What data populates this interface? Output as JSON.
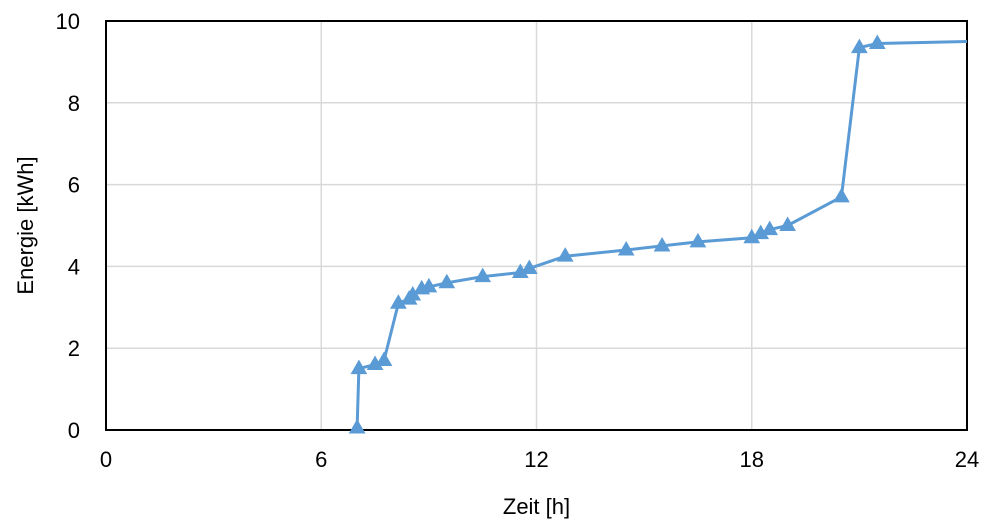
{
  "chart_data": {
    "type": "line",
    "title": "",
    "xlabel": "Zeit [h]",
    "ylabel": "Energie [kWh]",
    "xlim": [
      0,
      24
    ],
    "ylim": [
      0,
      10
    ],
    "xticks": [
      0,
      6,
      12,
      18,
      24
    ],
    "yticks": [
      0,
      2,
      4,
      6,
      8,
      10
    ],
    "grid": true,
    "legend": "none",
    "colors": {
      "series": "#5b9bd5",
      "marker": "#5b9bd5",
      "grid": "#d9d9d9",
      "frame": "#000000"
    },
    "series": [
      {
        "marker": "triangle",
        "x": [
          7.0,
          7.05,
          7.5,
          7.75,
          8.15,
          8.45,
          8.55,
          8.8,
          9.0,
          9.5,
          10.5,
          11.55,
          11.8,
          12.8,
          14.5,
          15.5,
          16.5,
          18.0,
          18.25,
          18.5,
          19.0,
          20.5,
          21.0,
          21.5,
          24.0
        ],
        "y": [
          0.05,
          1.5,
          1.6,
          1.7,
          3.1,
          3.2,
          3.3,
          3.45,
          3.5,
          3.6,
          3.75,
          3.85,
          3.95,
          4.25,
          4.4,
          4.5,
          4.6,
          4.7,
          4.8,
          4.9,
          5.0,
          5.7,
          9.35,
          9.45,
          9.5
        ],
        "marker_mask": [
          true,
          true,
          true,
          true,
          true,
          true,
          true,
          true,
          true,
          true,
          true,
          true,
          true,
          true,
          true,
          true,
          true,
          true,
          true,
          true,
          true,
          true,
          true,
          true,
          false
        ]
      }
    ]
  }
}
